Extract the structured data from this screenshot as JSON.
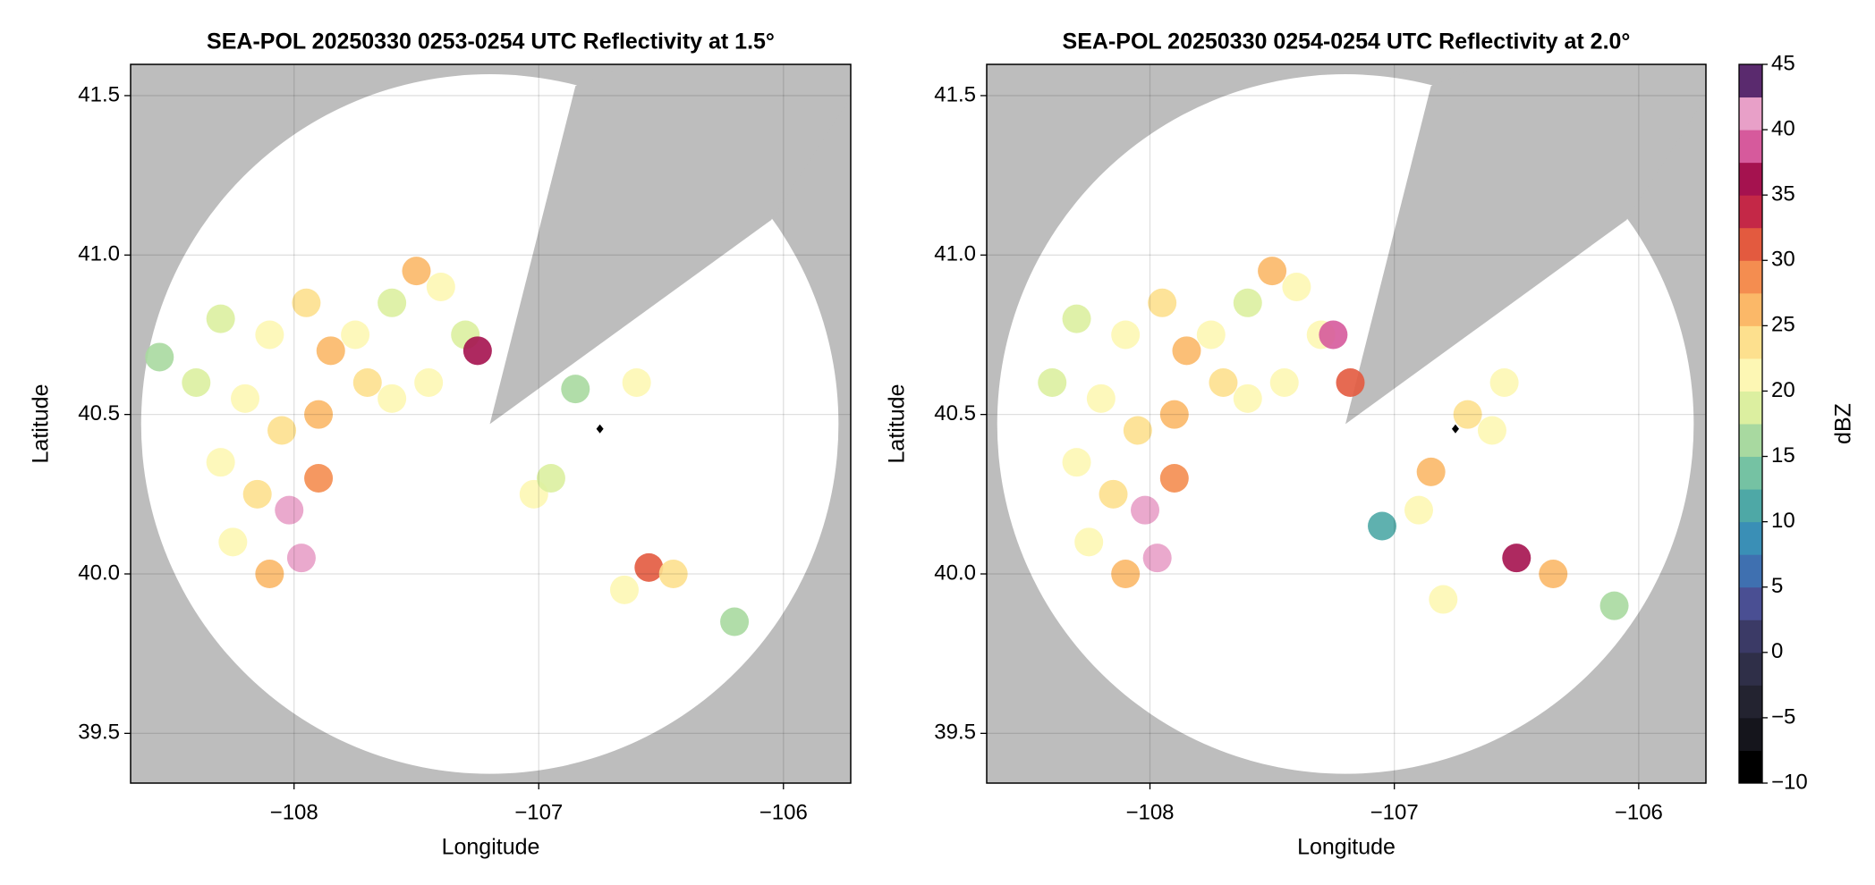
{
  "chart_data": [
    {
      "type": "radar",
      "title": "SEA-POL 20250330 0253-0254 UTC Reflectivity at 1.5°",
      "xlabel": "Longitude",
      "ylabel": "Latitude",
      "x": [
        -108.3,
        -108.1,
        -107.95,
        -107.85,
        -107.7,
        -108.2,
        -108.05,
        -107.9,
        -107.75,
        -107.6,
        -107.6,
        -107.45,
        -107.3,
        -107.25,
        -107.4,
        -107.5,
        -108.4,
        -108.3,
        -108.15,
        -108.02,
        -107.9,
        -108.25,
        -107.97,
        -108.1,
        -107.02,
        -106.95,
        -106.55,
        -106.65,
        -106.45,
        -106.2,
        -106.6,
        -106.85,
        -108.55
      ],
      "y": [
        40.8,
        40.75,
        40.85,
        40.7,
        40.6,
        40.55,
        40.45,
        40.5,
        40.75,
        40.85,
        40.55,
        40.6,
        40.75,
        40.7,
        40.9,
        40.95,
        40.6,
        40.35,
        40.25,
        40.2,
        40.3,
        40.1,
        40.05,
        40.0,
        40.25,
        40.3,
        40.02,
        39.95,
        40.0,
        39.85,
        40.6,
        40.58,
        40.68
      ],
      "values": [
        18,
        22,
        24,
        26,
        24,
        22,
        24,
        26,
        20,
        18,
        22,
        20,
        18,
        35,
        20,
        26,
        18,
        22,
        24,
        42,
        28,
        22,
        40,
        26,
        22,
        18,
        32,
        22,
        24,
        16,
        20,
        15,
        16
      ],
      "xlim": [
        -108.668,
        -105.725
      ],
      "ylim": [
        39.344,
        41.598
      ],
      "xticks": [
        {
          "value": -108,
          "label": "−108"
        },
        {
          "value": -107,
          "label": "−107"
        },
        {
          "value": -106,
          "label": "−106"
        }
      ],
      "yticks": [
        39.5,
        {
          "value": 40,
          "label": "40.0"
        },
        40.5,
        {
          "value": 41,
          "label": "41.0"
        },
        41.5
      ],
      "grid": true
    },
    {
      "type": "radar",
      "title": "SEA-POL 20250330 0254-0254 UTC Reflectivity at 2.0°",
      "xlabel": "Longitude",
      "ylabel": "Latitude",
      "x": [
        -108.3,
        -108.1,
        -107.95,
        -107.85,
        -107.7,
        -108.2,
        -108.05,
        -107.9,
        -107.75,
        -107.6,
        -107.6,
        -107.45,
        -107.3,
        -107.25,
        -107.18,
        -107.4,
        -107.5,
        -108.4,
        -108.3,
        -108.15,
        -108.02,
        -107.9,
        -108.25,
        -107.97,
        -108.1,
        -106.7,
        -106.55,
        -106.9,
        -106.85,
        -106.5,
        -106.35,
        -106.8,
        -106.1,
        -107.05,
        -106.6
      ],
      "y": [
        40.8,
        40.75,
        40.85,
        40.7,
        40.6,
        40.55,
        40.45,
        40.5,
        40.75,
        40.85,
        40.55,
        40.6,
        40.75,
        40.75,
        40.6,
        40.9,
        40.95,
        40.6,
        40.35,
        40.25,
        40.2,
        40.3,
        40.1,
        40.05,
        40.0,
        40.5,
        40.6,
        40.2,
        40.32,
        40.05,
        40.0,
        39.92,
        39.9,
        40.15,
        40.45
      ],
      "values": [
        18,
        22,
        24,
        26,
        24,
        22,
        24,
        26,
        20,
        18,
        22,
        20,
        20,
        38,
        30,
        20,
        26,
        18,
        22,
        24,
        42,
        28,
        22,
        40,
        26,
        24,
        22,
        22,
        26,
        36,
        26,
        22,
        16,
        12,
        20
      ],
      "xlim": [
        -108.668,
        -105.725
      ],
      "ylim": [
        39.344,
        41.598
      ],
      "xticks": [
        {
          "value": -108,
          "label": "−108"
        },
        {
          "value": -107,
          "label": "−107"
        },
        {
          "value": -106,
          "label": "−106"
        }
      ],
      "yticks": [
        39.5,
        {
          "value": 40,
          "label": "40.0"
        },
        40.5,
        {
          "value": 41,
          "label": "41.0"
        },
        41.5
      ],
      "grid": true
    },
    {
      "type": "colorbar",
      "label": "dBZ",
      "lim": [
        -10,
        45
      ],
      "ticks": [
        {
          "value": -10,
          "label": "−10"
        },
        {
          "value": -5,
          "label": "−5"
        },
        0,
        5,
        10,
        15,
        20,
        25,
        30,
        35,
        40,
        45
      ],
      "colors": [
        "#000000",
        "#15151c",
        "#232330",
        "#2f2f48",
        "#3b3a66",
        "#4a4f93",
        "#3f70b0",
        "#3a8fb6",
        "#4ea8a6",
        "#75c2a3",
        "#a8d9a0",
        "#dcefa0",
        "#fdf7b4",
        "#fde08e",
        "#fbb868",
        "#f48d50",
        "#e35a3f",
        "#c42847",
        "#a5124f",
        "#d65a9c",
        "#e8a0c8",
        "#5a2a6e"
      ]
    }
  ]
}
